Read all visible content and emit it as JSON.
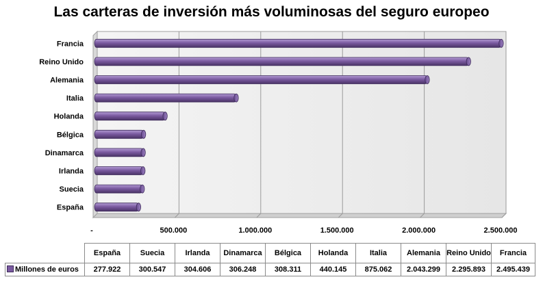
{
  "chart_data": {
    "type": "bar",
    "orientation": "horizontal",
    "title": "Las carteras de inversión más voluminosas del seguro europeo",
    "categories": [
      "España",
      "Suecia",
      "Irlanda",
      "Dinamarca",
      "Bélgica",
      "Holanda",
      "Italia",
      "Alemania",
      "Reino Unido",
      "Francia"
    ],
    "series": [
      {
        "name": "Millones de euros",
        "values": [
          277922,
          300547,
          304606,
          306248,
          308311,
          440145,
          875062,
          2043299,
          2295893,
          2495439
        ],
        "labels": [
          "277.922",
          "300.547",
          "304.606",
          "306.248",
          "308.311",
          "440.145",
          "875.062",
          "2.043.299",
          "2.295.893",
          "2.495.439"
        ]
      }
    ],
    "xlim": [
      0,
      2500000
    ],
    "x_ticks": [
      0,
      500000,
      1000000,
      1500000,
      2000000,
      2500000
    ],
    "x_tick_labels": [
      "-",
      "500.000",
      "1.000.000",
      "1.500.000",
      "2.000.000",
      "2.500.000"
    ],
    "grid": true,
    "legend": "data-table",
    "colors": {
      "bar": "#7b5ba1",
      "bar_dark": "#4a3366",
      "bar_light": "#b39bd4",
      "wall": "#ececec",
      "grid": "#9a9a9a"
    }
  },
  "table": {
    "headers": [
      "España",
      "Suecia",
      "Irlanda",
      "Dinamarca",
      "Bélgica",
      "Holanda",
      "Italia",
      "Alemania",
      "Reino Unido",
      "Francia"
    ],
    "row_label": "Millones de euros",
    "values": [
      "277.922",
      "300.547",
      "304.606",
      "306.248",
      "308.311",
      "440.145",
      "875.062",
      "2.043.299",
      "2.295.893",
      "2.495.439"
    ]
  }
}
